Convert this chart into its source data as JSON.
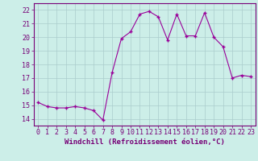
{
  "x": [
    0,
    1,
    2,
    3,
    4,
    5,
    6,
    7,
    8,
    9,
    10,
    11,
    12,
    13,
    14,
    15,
    16,
    17,
    18,
    19,
    20,
    21,
    22,
    23
  ],
  "y": [
    15.2,
    14.9,
    14.8,
    14.8,
    14.9,
    14.8,
    14.6,
    13.9,
    17.4,
    19.9,
    20.4,
    21.7,
    21.9,
    21.5,
    19.8,
    21.7,
    20.1,
    20.1,
    21.8,
    20.0,
    19.3,
    17.0,
    17.2,
    17.1
  ],
  "xlim": [
    -0.5,
    23.5
  ],
  "ylim": [
    13.5,
    22.5
  ],
  "yticks": [
    14,
    15,
    16,
    17,
    18,
    19,
    20,
    21,
    22
  ],
  "xticks": [
    0,
    1,
    2,
    3,
    4,
    5,
    6,
    7,
    8,
    9,
    10,
    11,
    12,
    13,
    14,
    15,
    16,
    17,
    18,
    19,
    20,
    21,
    22,
    23
  ],
  "line_color": "#990099",
  "marker": "+",
  "marker_color": "#990099",
  "bg_color": "#cceee8",
  "grid_color": "#aacccc",
  "xlabel": "Windchill (Refroidissement éolien,°C)",
  "xlabel_fontsize": 6.5,
  "tick_fontsize": 6,
  "figsize": [
    3.2,
    2.0
  ],
  "dpi": 100
}
